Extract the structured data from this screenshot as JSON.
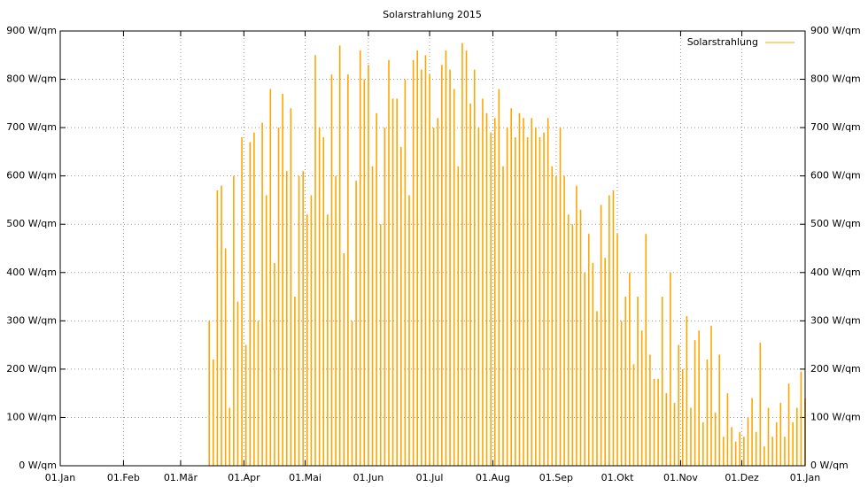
{
  "chart_data": {
    "type": "impulse",
    "title": "Solarstrahlung 2015",
    "x": [
      73,
      75,
      77,
      79,
      81,
      83,
      85,
      87,
      89,
      91,
      93,
      95,
      97,
      99,
      101,
      103,
      105,
      107,
      109,
      111,
      113,
      115,
      117,
      119,
      121,
      123,
      125,
      127,
      129,
      131,
      133,
      135,
      137,
      139,
      141,
      143,
      145,
      147,
      149,
      151,
      153,
      155,
      157,
      159,
      161,
      163,
      165,
      167,
      169,
      171,
      173,
      175,
      177,
      179,
      181,
      183,
      185,
      187,
      189,
      191,
      193,
      195,
      197,
      199,
      201,
      203,
      205,
      207,
      209,
      211,
      213,
      215,
      217,
      219,
      221,
      223,
      225,
      227,
      229,
      231,
      233,
      235,
      237,
      239,
      241,
      243,
      245,
      247,
      249,
      251,
      253,
      255,
      257,
      259,
      261,
      263,
      265,
      267,
      269,
      271,
      273,
      275,
      277,
      279,
      281,
      283,
      285,
      287,
      289,
      291,
      293,
      295,
      297,
      299,
      301,
      303,
      305,
      307,
      309,
      311,
      313,
      315,
      317,
      319,
      321,
      323,
      325,
      327,
      329,
      331,
      333,
      335,
      337,
      339,
      341,
      343,
      345,
      347,
      349,
      351,
      353,
      355,
      357,
      359,
      361,
      363,
      365
    ],
    "series": [
      {
        "name": "Solarstrahlung",
        "color": "#ffa500",
        "values": [
          300,
          220,
          570,
          580,
          450,
          120,
          600,
          340,
          680,
          250,
          670,
          690,
          300,
          710,
          560,
          780,
          420,
          700,
          770,
          610,
          740,
          350,
          600,
          610,
          520,
          560,
          850,
          700,
          680,
          520,
          810,
          600,
          870,
          440,
          810,
          300,
          590,
          860,
          800,
          830,
          620,
          730,
          500,
          700,
          840,
          760,
          760,
          660,
          800,
          560,
          840,
          860,
          820,
          850,
          810,
          700,
          720,
          830,
          860,
          820,
          780,
          620,
          875,
          860,
          750,
          820,
          700,
          760,
          730,
          690,
          720,
          780,
          620,
          700,
          740,
          680,
          730,
          720,
          680,
          720,
          700,
          680,
          690,
          720,
          620,
          600,
          700,
          600,
          520,
          500,
          580,
          530,
          400,
          480,
          420,
          320,
          540,
          430,
          560,
          570,
          480,
          300,
          350,
          400,
          210,
          350,
          280,
          480,
          230,
          180,
          180,
          350,
          150,
          400,
          130,
          250,
          200,
          310,
          120,
          260,
          280,
          90,
          220,
          290,
          110,
          230,
          60,
          150,
          80,
          50,
          70,
          60,
          100,
          140,
          70,
          255,
          40,
          120,
          60,
          90,
          130,
          60,
          170,
          90,
          120,
          195,
          140
        ]
      }
    ],
    "xlim": [
      0,
      365
    ],
    "xticks": [
      {
        "value": 0,
        "label": "01.Jan"
      },
      {
        "value": 31,
        "label": "01.Feb"
      },
      {
        "value": 59,
        "label": "01.Mär"
      },
      {
        "value": 90,
        "label": "01.Apr"
      },
      {
        "value": 120,
        "label": "01.Mai"
      },
      {
        "value": 151,
        "label": "01.Jun"
      },
      {
        "value": 181,
        "label": "01.Jul"
      },
      {
        "value": 212,
        "label": "01.Aug"
      },
      {
        "value": 243,
        "label": "01.Sep"
      },
      {
        "value": 273,
        "label": "01.Okt"
      },
      {
        "value": 304,
        "label": "01.Nov"
      },
      {
        "value": 334,
        "label": "01.Dez"
      },
      {
        "value": 365,
        "label": "01.Jan"
      }
    ],
    "ylim": [
      0,
      900
    ],
    "yticks": [
      {
        "value": 0,
        "label": "0 W/qm"
      },
      {
        "value": 100,
        "label": "100 W/qm"
      },
      {
        "value": 200,
        "label": "200 W/qm"
      },
      {
        "value": 300,
        "label": "300 W/qm"
      },
      {
        "value": 400,
        "label": "400 W/qm"
      },
      {
        "value": 500,
        "label": "500 W/qm"
      },
      {
        "value": 600,
        "label": "600 W/qm"
      },
      {
        "value": 700,
        "label": "700 W/qm"
      },
      {
        "value": 800,
        "label": "800 W/qm"
      },
      {
        "value": 900,
        "label": "900 W/qm"
      }
    ],
    "grid": true,
    "mirror_y": true,
    "legend": "top-right"
  }
}
